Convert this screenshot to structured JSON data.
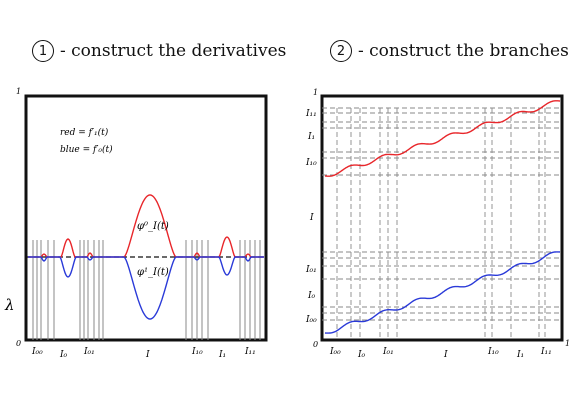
{
  "step1": {
    "number": "1",
    "text": "- construct the derivatives"
  },
  "step2": {
    "number": "2",
    "text": "- construct the branches"
  },
  "left": {
    "y_top": "1",
    "y_bottom": "0",
    "axis_label": "λ",
    "legend_red": "red = f′₁(t)",
    "legend_blue": "blue = f′₀(t)",
    "phi_red": "φ⁰_I(t)",
    "phi_blue": "φ¹_I(t)",
    "x_labels": [
      "I₀₀",
      "I₀",
      "I₀₁",
      "I",
      "I₁₀",
      "I₁",
      "I₁₁"
    ],
    "colors": {
      "red": "#e8262a",
      "blue": "#2a3ad8",
      "dash": "#111111",
      "guide": "#555555"
    }
  },
  "right": {
    "y_top": "1",
    "y_bottom": "0",
    "x_right": "1",
    "y_labels": [
      "I₁₁",
      "I₁",
      "I₁₀",
      "I",
      "I₀₁",
      "I₀",
      "I₀₀"
    ],
    "x_labels": [
      "I₀₀",
      "I₀",
      "I₀₁",
      "I",
      "I₁₀",
      "I₁",
      "I₁₁"
    ],
    "colors": {
      "red": "#e8262a",
      "blue": "#2a3ad8",
      "guide": "#777777"
    }
  }
}
